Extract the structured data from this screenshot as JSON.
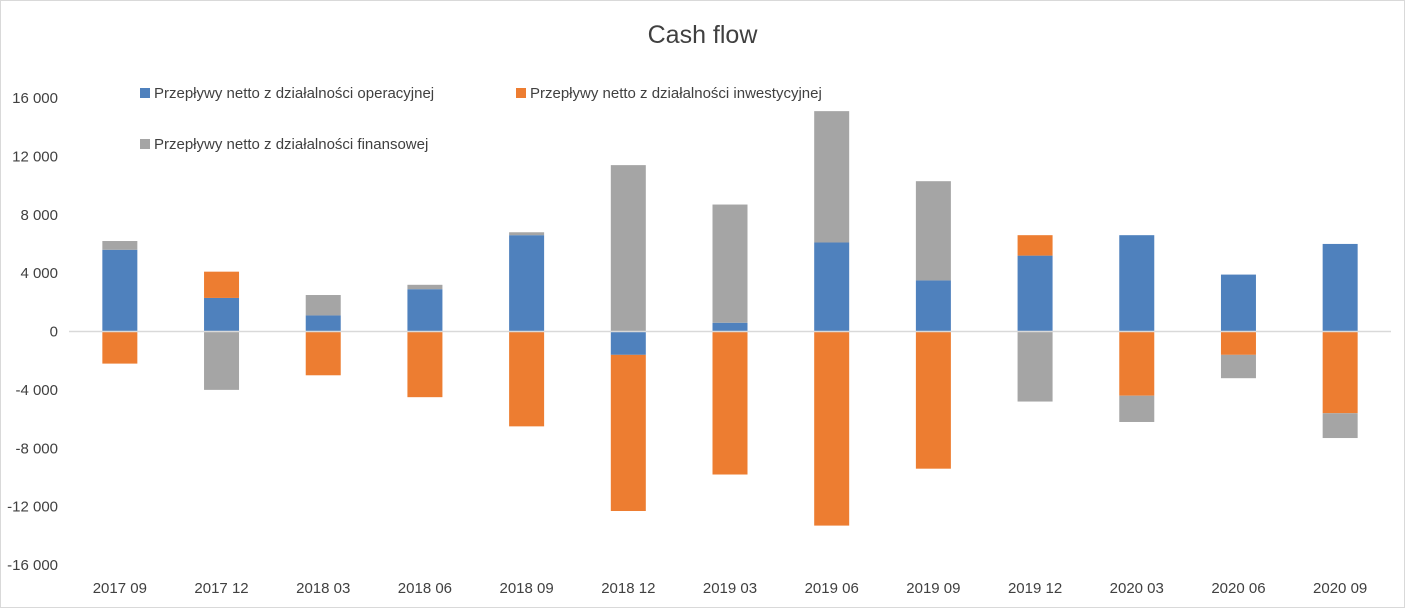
{
  "chart_data": {
    "type": "bar",
    "stacked": true,
    "title": "Cash flow",
    "xlabel": "",
    "ylabel": "",
    "ylim": [
      -16000,
      16000
    ],
    "yticks": [
      16000,
      12000,
      8000,
      4000,
      0,
      -4000,
      -8000,
      -12000,
      -16000
    ],
    "ytick_labels": [
      "16 000",
      "12 000",
      "8 000",
      "4 000",
      "0",
      "-4 000",
      "-8 000",
      "-12 000",
      "-16 000"
    ],
    "grid": false,
    "legend_position": "top-left",
    "categories": [
      "2017 09",
      "2017 12",
      "2018 03",
      "2018 06",
      "2018 09",
      "2018 12",
      "2019 03",
      "2019 06",
      "2019 09",
      "2019 12",
      "2020 03",
      "2020 06",
      "2020 09"
    ],
    "series": [
      {
        "name": "Przepływy netto z działalności operacyjnej",
        "color": "#4f81bd",
        "values": [
          5600,
          2300,
          1100,
          2900,
          6600,
          -1600,
          600,
          6100,
          3500,
          5200,
          6600,
          3900,
          6000
        ]
      },
      {
        "name": "Przepływy netto z działalności inwestycyjnej",
        "color": "#ed7d31",
        "values": [
          -2200,
          1800,
          -3000,
          -4500,
          -6500,
          -10700,
          -9800,
          -13300,
          -9400,
          1400,
          -4400,
          -1600,
          -5600
        ]
      },
      {
        "name": "Przepływy netto z działalności finansowej",
        "color": "#a5a5a5",
        "values": [
          600,
          -4000,
          1400,
          300,
          200,
          11400,
          8100,
          9000,
          6800,
          -4800,
          -1800,
          -1600,
          -1700
        ]
      }
    ]
  }
}
